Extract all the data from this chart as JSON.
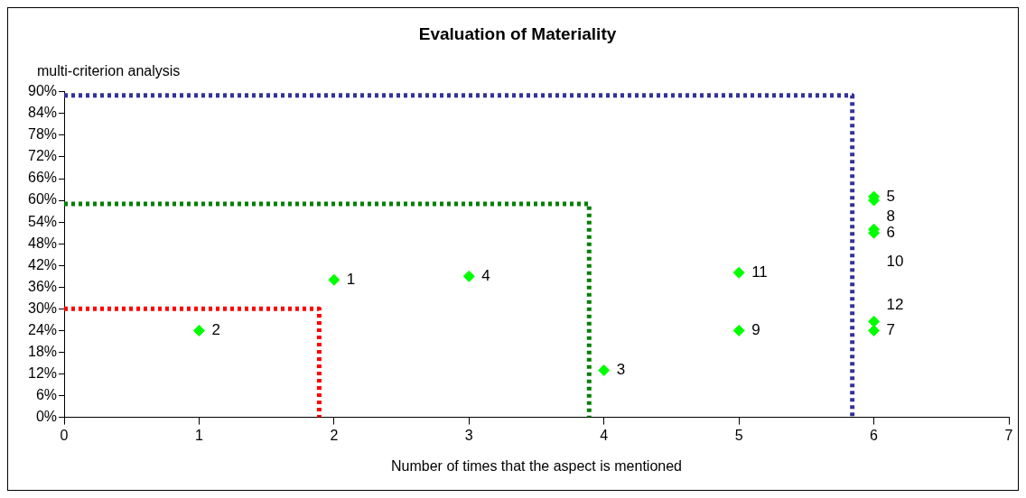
{
  "chart_data": {
    "type": "scatter",
    "title": "Evaluation of Materiality",
    "ylabel": "multi-criterion analysis",
    "xlabel": "Number of times that the aspect is mentioned",
    "xlim": [
      0,
      7
    ],
    "xticks": [
      0,
      1,
      2,
      3,
      4,
      5,
      6,
      7
    ],
    "ylim": [
      0,
      90
    ],
    "yticks": [
      {
        "value": 0,
        "label": "0%"
      },
      {
        "value": 6,
        "label": "6%"
      },
      {
        "value": 12,
        "label": "12%"
      },
      {
        "value": 18,
        "label": "18%"
      },
      {
        "value": 24,
        "label": "24%"
      },
      {
        "value": 30,
        "label": "30%"
      },
      {
        "value": 36,
        "label": "36%"
      },
      {
        "value": 42,
        "label": "42%"
      },
      {
        "value": 48,
        "label": "48%"
      },
      {
        "value": 54,
        "label": "54%"
      },
      {
        "value": 60,
        "label": "60%"
      },
      {
        "value": 66,
        "label": "66%"
      },
      {
        "value": 72,
        "label": "72%"
      },
      {
        "value": 78,
        "label": "78%"
      },
      {
        "value": 84,
        "label": "84%"
      },
      {
        "value": 90,
        "label": "90%"
      }
    ],
    "grid": false,
    "legend": false,
    "annotations": [
      {
        "text": "1",
        "x": 2,
        "y": 38
      },
      {
        "text": "2",
        "x": 1,
        "y": 24
      },
      {
        "text": "3",
        "x": 4,
        "y": 13
      },
      {
        "text": "4",
        "x": 3,
        "y": 39
      },
      {
        "text": "5",
        "x": 6,
        "y": 61
      },
      {
        "text": "6",
        "x": 6,
        "y": 51
      },
      {
        "text": "7",
        "x": 6,
        "y": 24
      },
      {
        "text": "8",
        "x": 6,
        "y": 60
      },
      {
        "text": "9",
        "x": 5,
        "y": 24
      },
      {
        "text": "10",
        "x": 6,
        "y": 52
      },
      {
        "text": "11",
        "x": 5,
        "y": 40
      },
      {
        "text": "12",
        "x": 6,
        "y": 26.5
      }
    ],
    "series": [
      {
        "color": "#00ff00",
        "marker": "diamond",
        "x": [
          2,
          1,
          4,
          3,
          6,
          6,
          6,
          6,
          5,
          6,
          5,
          6
        ],
        "values": [
          38,
          24,
          13,
          39,
          61,
          51,
          24,
          60,
          24,
          52,
          40,
          26.5
        ]
      },
      {
        "type": "line",
        "color": "#ff0000",
        "marker": "none",
        "line_style": "dotted",
        "x": [
          0,
          1.89,
          1.89
        ],
        "values": [
          30,
          30,
          0
        ]
      },
      {
        "type": "line",
        "color": "#008000",
        "marker": "none",
        "line_style": "dotted",
        "x": [
          0,
          3.89,
          3.89
        ],
        "values": [
          59,
          59,
          0
        ]
      },
      {
        "type": "line",
        "color": "#333399",
        "marker": "none",
        "line_style": "dotted",
        "x": [
          0,
          5.84,
          5.84
        ],
        "values": [
          89,
          89,
          0
        ]
      }
    ]
  }
}
